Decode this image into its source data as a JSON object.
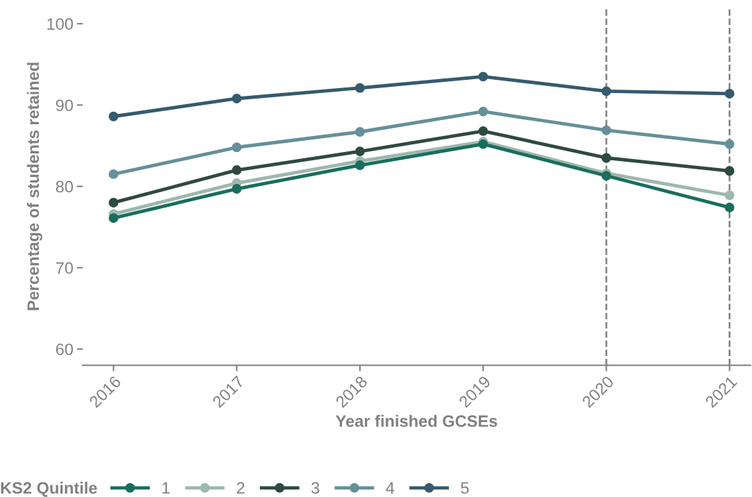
{
  "chart_data": {
    "type": "line",
    "xlabel": "Year finished GCSEs",
    "ylabel": "Percentage of students retained",
    "legend_title": "KS2 Quintile",
    "x": [
      2016,
      2017,
      2018,
      2019,
      2020,
      2021
    ],
    "series": [
      {
        "name": "1",
        "color": "#1a6e5e",
        "values": [
          76.1,
          79.7,
          82.6,
          85.2,
          81.3,
          77.4
        ]
      },
      {
        "name": "2",
        "color": "#9db8ad",
        "values": [
          76.6,
          80.4,
          83.1,
          85.5,
          81.6,
          78.9
        ]
      },
      {
        "name": "3",
        "color": "#2f4a40",
        "values": [
          78.0,
          82.0,
          84.3,
          86.8,
          83.5,
          81.9
        ]
      },
      {
        "name": "4",
        "color": "#65909a",
        "values": [
          81.5,
          84.8,
          86.7,
          89.2,
          86.9,
          85.2
        ]
      },
      {
        "name": "5",
        "color": "#365a6e",
        "values": [
          88.6,
          90.8,
          92.1,
          93.5,
          91.7,
          91.4
        ]
      }
    ],
    "xlim": [
      2015.75,
      2021.17
    ],
    "ylim": [
      58,
      102
    ],
    "xticks": [
      2016,
      2017,
      2018,
      2019,
      2020,
      2021
    ],
    "yticks": [
      60,
      70,
      80,
      90,
      100
    ],
    "ref_lines": [
      {
        "axis": "x",
        "value": 2020,
        "color": "#808080",
        "line_style": "dashed"
      },
      {
        "axis": "x",
        "value": 2021,
        "color": "#808080",
        "line_style": "dashed"
      }
    ],
    "marker": "circle",
    "line_style": "solid",
    "grid": false,
    "legend": "bottom"
  }
}
